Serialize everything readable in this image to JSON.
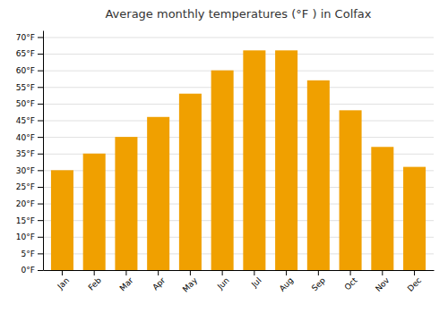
{
  "chart_data": {
    "type": "bar",
    "title": "Average monthly temperatures (°F ) in Colfax",
    "categories": [
      "Jan",
      "Feb",
      "Mar",
      "Apr",
      "May",
      "Jun",
      "Jul",
      "Aug",
      "Sep",
      "Oct",
      "Nov",
      "Dec"
    ],
    "values": [
      30,
      35,
      40,
      46,
      53,
      60,
      66,
      66,
      57,
      48,
      37,
      31
    ],
    "color": "#F0A000",
    "ylim": [
      0,
      72
    ],
    "yticks": [
      {
        "value": 0,
        "label": "0°F"
      },
      {
        "value": 5,
        "label": "5°F"
      },
      {
        "value": 10,
        "label": "10°F"
      },
      {
        "value": 15,
        "label": "15°F"
      },
      {
        "value": 20,
        "label": "20°F"
      },
      {
        "value": 25,
        "label": "25°F"
      },
      {
        "value": 30,
        "label": "30°F"
      },
      {
        "value": 35,
        "label": "35°F"
      },
      {
        "value": 40,
        "label": "40°F"
      },
      {
        "value": 45,
        "label": "45°F"
      },
      {
        "value": 50,
        "label": "50°F"
      },
      {
        "value": 55,
        "label": "55°F"
      },
      {
        "value": 60,
        "label": "60°F"
      },
      {
        "value": 65,
        "label": "65°F"
      },
      {
        "value": 70,
        "label": "70°F"
      }
    ],
    "grid": true
  }
}
